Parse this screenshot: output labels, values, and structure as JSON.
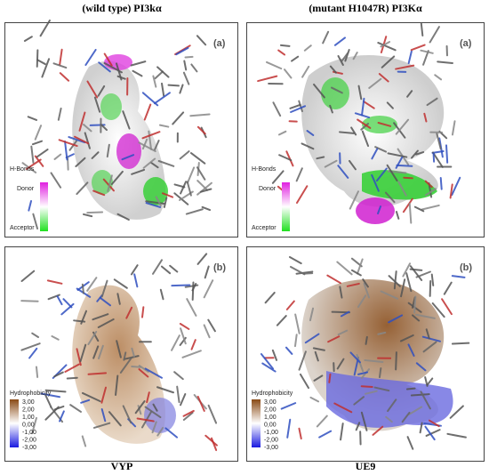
{
  "headers": [
    "(wild type) PI3kα",
    "(mutant H1047R) PI3Kα"
  ],
  "panels": [
    {
      "label": "(a)",
      "legend_title": "H-Bonds",
      "legend_labels": [
        "Donor",
        "Acceptor"
      ]
    },
    {
      "label": "(a)",
      "legend_title": "H-Bonds",
      "legend_labels": [
        "Donor",
        "Acceptor"
      ]
    },
    {
      "label": "(b)",
      "legend_title": "Hydrophobicity",
      "legend_labels": [
        "3,00",
        "2,00",
        "1,00",
        "0,00",
        "-1,00",
        "-2,00",
        "-3,00"
      ]
    },
    {
      "label": "(b)",
      "legend_title": "Hydrophobicity",
      "legend_labels": [
        "3,00",
        "2,00",
        "1,00",
        "0,00",
        "-1,00",
        "-2,00",
        "-3,00"
      ]
    }
  ],
  "footers": [
    "VYP",
    "UE9"
  ]
}
